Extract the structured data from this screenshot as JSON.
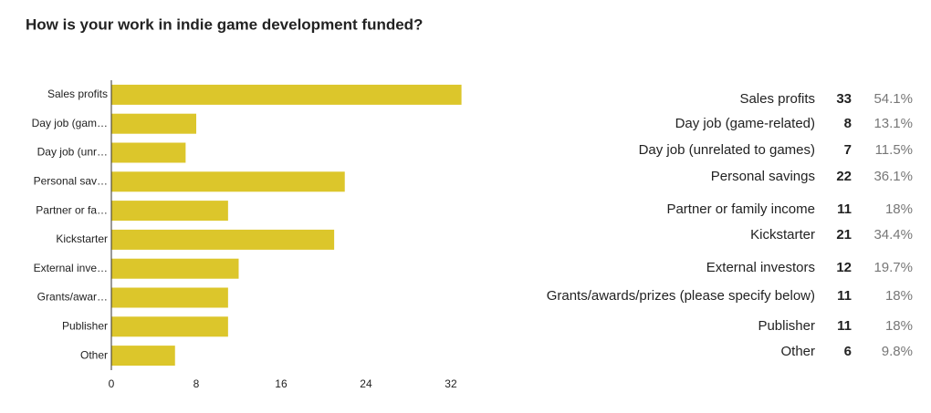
{
  "chart_data": {
    "type": "bar",
    "orientation": "horizontal",
    "title": "How is your work in indie game development funded?",
    "categories": [
      "Sales profits",
      "Day job (gam…",
      "Day job (unr…",
      "Personal sav…",
      "Partner or fa…",
      "Kickstarter",
      "External inve…",
      "Grants/awar…",
      "Publisher",
      "Other"
    ],
    "values": [
      33,
      8,
      7,
      22,
      11,
      21,
      12,
      11,
      11,
      6
    ],
    "color": "#dcc62b",
    "xlim": [
      0,
      33
    ],
    "xticks": [
      0,
      8,
      16,
      24,
      32
    ],
    "grid": false
  },
  "table": {
    "rows": [
      [
        "Sales profits",
        33,
        "54.1%"
      ],
      [
        "Day job (game-related)",
        8,
        "13.1%"
      ],
      [
        "Day job (unrelated to games)",
        7,
        "11.5%"
      ],
      [
        "Personal savings",
        22,
        "36.1%"
      ],
      [
        "Partner or family income",
        11,
        "18%"
      ],
      [
        "Kickstarter",
        21,
        "34.4%"
      ],
      [
        "External investors",
        12,
        "19.7%"
      ],
      [
        "Grants/awards/prizes (please specify below)",
        11,
        "18%"
      ],
      [
        "Publisher",
        11,
        "18%"
      ],
      [
        "Other",
        6,
        "9.8%"
      ]
    ]
  }
}
